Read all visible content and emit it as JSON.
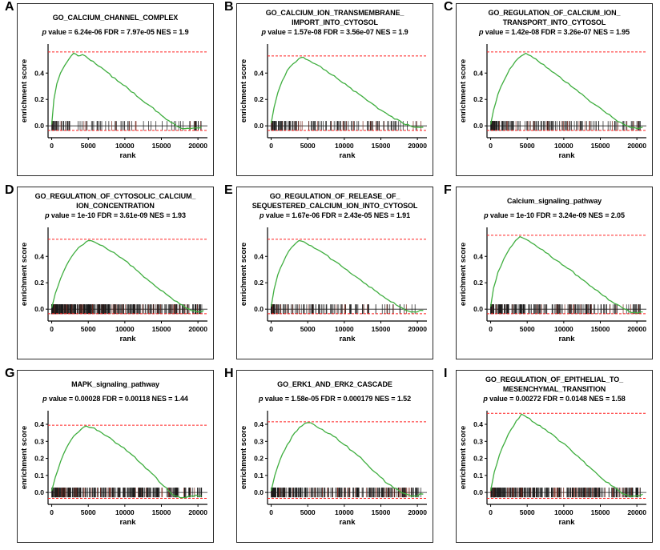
{
  "figure": {
    "stats_prefix": "p",
    "colors": {
      "curve": "#3fae3f",
      "dash": "#ff2222",
      "hit": "#1a1a1a",
      "hit_alt": "#7a2b20",
      "axis": "#000000",
      "border": "#2b2b2b"
    }
  },
  "chart_data": [
    {
      "panel": "A",
      "type": "line",
      "title": "GO_CALCIUM_CHANNEL_COMPLEX",
      "title_lines": [
        "GO_CALCIUM_CHANNEL_COMPLEX"
      ],
      "stats": " value = 6.24e-06 FDR = 7.97e-05 NES = 1.9",
      "xlabel": "rank",
      "ylabel": "enrichment score",
      "xticks": [
        0,
        5000,
        10000,
        15000,
        20000
      ],
      "xlim": [
        -500,
        21300
      ],
      "yticks": [
        0.0,
        0.2,
        0.4
      ],
      "ylim": [
        -0.09,
        0.62
      ],
      "dash_y": 0.56,
      "dash_low_y": -0.035,
      "curve": [
        [
          0,
          0.01
        ],
        [
          300,
          0.2
        ],
        [
          700,
          0.32
        ],
        [
          1200,
          0.4
        ],
        [
          1800,
          0.46
        ],
        [
          2400,
          0.51
        ],
        [
          3000,
          0.55
        ],
        [
          3600,
          0.53
        ],
        [
          4200,
          0.54
        ],
        [
          5000,
          0.51
        ],
        [
          6000,
          0.47
        ],
        [
          7500,
          0.41
        ],
        [
          9000,
          0.34
        ],
        [
          10500,
          0.28
        ],
        [
          12000,
          0.21
        ],
        [
          13500,
          0.15
        ],
        [
          15000,
          0.08
        ],
        [
          16000,
          0.04
        ],
        [
          17000,
          0.0
        ],
        [
          17800,
          -0.02
        ],
        [
          19000,
          -0.02
        ],
        [
          20500,
          -0.01
        ]
      ],
      "hits": {
        "count": 90,
        "skew": 1.9
      }
    },
    {
      "panel": "B",
      "type": "line",
      "title": "GO_CALCIUM_ION_TRANSMEMBRANE_IMPORT_INTO_CYTOSOL",
      "title_lines": [
        "GO_CALCIUM_ION_TRANSMEMBRANE_",
        "IMPORT_INTO_CYTOSOL"
      ],
      "stats": " value = 1.57e-08 FDR = 3.56e-07 NES = 1.9",
      "xlabel": "rank",
      "ylabel": "enrichment score",
      "xticks": [
        0,
        5000,
        10000,
        15000,
        20000
      ],
      "xlim": [
        -500,
        21300
      ],
      "yticks": [
        0.0,
        0.2,
        0.4
      ],
      "ylim": [
        -0.09,
        0.62
      ],
      "dash_y": 0.53,
      "dash_low_y": -0.035,
      "curve": [
        [
          0,
          0.02
        ],
        [
          400,
          0.14
        ],
        [
          900,
          0.25
        ],
        [
          1500,
          0.34
        ],
        [
          2200,
          0.42
        ],
        [
          3000,
          0.47
        ],
        [
          3800,
          0.51
        ],
        [
          4400,
          0.52
        ],
        [
          5000,
          0.5
        ],
        [
          6000,
          0.47
        ],
        [
          7500,
          0.42
        ],
        [
          9000,
          0.36
        ],
        [
          10500,
          0.3
        ],
        [
          12000,
          0.24
        ],
        [
          13500,
          0.18
        ],
        [
          15000,
          0.12
        ],
        [
          16500,
          0.07
        ],
        [
          18000,
          0.02
        ],
        [
          19000,
          0.0
        ],
        [
          20000,
          -0.01
        ],
        [
          20800,
          -0.01
        ]
      ],
      "hits": {
        "count": 140,
        "skew": 1.9
      }
    },
    {
      "panel": "C",
      "type": "line",
      "title": "GO_REGULATION_OF_CALCIUM_ION_TRANSPORT_INTO_CYTOSOL",
      "title_lines": [
        "GO_REGULATION_OF_CALCIUM_ION_",
        "TRANSPORT_INTO_CYTOSOL"
      ],
      "stats": " value = 1.42e-08 FDR = 3.26e-07 NES = 1.95",
      "xlabel": "rank",
      "ylabel": "enrichment score",
      "xticks": [
        0,
        5000,
        10000,
        15000,
        20000
      ],
      "xlim": [
        -500,
        21300
      ],
      "yticks": [
        0.0,
        0.2,
        0.4
      ],
      "ylim": [
        -0.09,
        0.62
      ],
      "dash_y": 0.56,
      "dash_low_y": -0.035,
      "curve": [
        [
          0,
          0.01
        ],
        [
          400,
          0.12
        ],
        [
          1000,
          0.24
        ],
        [
          1800,
          0.34
        ],
        [
          2600,
          0.43
        ],
        [
          3400,
          0.49
        ],
        [
          4200,
          0.53
        ],
        [
          4800,
          0.55
        ],
        [
          5500,
          0.53
        ],
        [
          6500,
          0.49
        ],
        [
          8000,
          0.43
        ],
        [
          9500,
          0.37
        ],
        [
          11000,
          0.3
        ],
        [
          12500,
          0.24
        ],
        [
          14000,
          0.17
        ],
        [
          15500,
          0.11
        ],
        [
          17000,
          0.05
        ],
        [
          18200,
          0.01
        ],
        [
          19000,
          -0.01
        ],
        [
          20000,
          -0.02
        ],
        [
          20800,
          -0.01
        ]
      ],
      "hits": {
        "count": 160,
        "skew": 1.8
      }
    },
    {
      "panel": "D",
      "type": "line",
      "title": "GO_REGULATION_OF_CYTOSOLIC_CALCIUM_ION_CONCENTRATION",
      "title_lines": [
        "GO_REGULATION_OF_CYTOSOLIC_CALCIUM_",
        "ION_CONCENTRATION"
      ],
      "stats": " value = 1e-10 FDR = 3.61e-09 NES = 1.93",
      "xlabel": "rank",
      "ylabel": "enrichment score",
      "xticks": [
        0,
        5000,
        10000,
        15000,
        20000
      ],
      "xlim": [
        -500,
        21300
      ],
      "yticks": [
        0.0,
        0.2,
        0.4
      ],
      "ylim": [
        -0.09,
        0.62
      ],
      "dash_y": 0.53,
      "dash_low_y": -0.035,
      "curve": [
        [
          0,
          0.01
        ],
        [
          500,
          0.12
        ],
        [
          1200,
          0.23
        ],
        [
          2000,
          0.33
        ],
        [
          3000,
          0.42
        ],
        [
          4000,
          0.48
        ],
        [
          5000,
          0.52
        ],
        [
          5800,
          0.51
        ],
        [
          7000,
          0.48
        ],
        [
          8500,
          0.43
        ],
        [
          10000,
          0.37
        ],
        [
          11500,
          0.3
        ],
        [
          13000,
          0.23
        ],
        [
          14500,
          0.16
        ],
        [
          16000,
          0.1
        ],
        [
          17500,
          0.04
        ],
        [
          18800,
          0.0
        ],
        [
          19800,
          -0.02
        ],
        [
          20800,
          -0.01
        ]
      ],
      "hits": {
        "count": 380,
        "skew": 1.7
      }
    },
    {
      "panel": "E",
      "type": "line",
      "title": "GO_REGULATION_OF_RELEASE_OF_SEQUESTERED_CALCIUM_ION_INTO_CYTOSOL",
      "title_lines": [
        "GO_REGULATION_OF_RELEASE_OF_",
        "SEQUESTERED_CALCIUM_ION_INTO_CYTOSOL"
      ],
      "stats": " value = 1.67e-06 FDR = 2.43e-05 NES = 1.91",
      "xlabel": "rank",
      "ylabel": "enrichment score",
      "xticks": [
        0,
        5000,
        10000,
        15000,
        20000
      ],
      "xlim": [
        -500,
        21300
      ],
      "yticks": [
        0.0,
        0.2,
        0.4
      ],
      "ylim": [
        -0.09,
        0.62
      ],
      "dash_y": 0.53,
      "dash_low_y": -0.035,
      "curve": [
        [
          0,
          0.02
        ],
        [
          400,
          0.15
        ],
        [
          900,
          0.26
        ],
        [
          1600,
          0.35
        ],
        [
          2400,
          0.44
        ],
        [
          3200,
          0.49
        ],
        [
          3800,
          0.52
        ],
        [
          4500,
          0.51
        ],
        [
          5500,
          0.48
        ],
        [
          7000,
          0.43
        ],
        [
          8500,
          0.37
        ],
        [
          10000,
          0.31
        ],
        [
          11500,
          0.25
        ],
        [
          13000,
          0.19
        ],
        [
          14500,
          0.13
        ],
        [
          16000,
          0.07
        ],
        [
          17500,
          0.02
        ],
        [
          18500,
          -0.01
        ],
        [
          19500,
          -0.02
        ],
        [
          20800,
          -0.01
        ]
      ],
      "hits": {
        "count": 130,
        "skew": 1.9
      }
    },
    {
      "panel": "F",
      "type": "line",
      "title": "Calcium_signaling_pathway",
      "title_lines": [
        "Calcium_signaling_pathway"
      ],
      "stats": " value = 1e-10 FDR = 3.24e-09 NES = 2.05",
      "xlabel": "rank",
      "ylabel": "enrichment score",
      "xticks": [
        0,
        5000,
        10000,
        15000,
        20000
      ],
      "xlim": [
        -500,
        21300
      ],
      "yticks": [
        0.0,
        0.2,
        0.4
      ],
      "ylim": [
        -0.09,
        0.62
      ],
      "dash_y": 0.56,
      "dash_low_y": -0.035,
      "curve": [
        [
          0,
          0.02
        ],
        [
          400,
          0.16
        ],
        [
          1000,
          0.28
        ],
        [
          1800,
          0.38
        ],
        [
          2600,
          0.46
        ],
        [
          3400,
          0.52
        ],
        [
          4000,
          0.55
        ],
        [
          4800,
          0.53
        ],
        [
          6000,
          0.49
        ],
        [
          7500,
          0.43
        ],
        [
          9000,
          0.37
        ],
        [
          10500,
          0.31
        ],
        [
          12000,
          0.25
        ],
        [
          13500,
          0.18
        ],
        [
          15000,
          0.12
        ],
        [
          16500,
          0.06
        ],
        [
          18000,
          0.01
        ],
        [
          19000,
          -0.02
        ],
        [
          20000,
          -0.03
        ],
        [
          20800,
          -0.02
        ]
      ],
      "hits": {
        "count": 200,
        "skew": 1.8
      }
    },
    {
      "panel": "G",
      "type": "line",
      "title": "MAPK_signaling_pathway",
      "title_lines": [
        "MAPK_signaling_pathway"
      ],
      "stats": " value = 0.00028 FDR = 0.00118 NES = 1.44",
      "xlabel": "rank",
      "ylabel": "enrichment score",
      "xticks": [
        0,
        5000,
        10000,
        15000,
        20000
      ],
      "xlim": [
        -500,
        21300
      ],
      "yticks": [
        0.0,
        0.1,
        0.2,
        0.3,
        0.4
      ],
      "ylim": [
        -0.07,
        0.48
      ],
      "dash_y": 0.395,
      "dash_low_y": -0.035,
      "curve": [
        [
          0,
          0.01
        ],
        [
          500,
          0.09
        ],
        [
          1200,
          0.18
        ],
        [
          2000,
          0.26
        ],
        [
          3000,
          0.33
        ],
        [
          4000,
          0.37
        ],
        [
          4700,
          0.39
        ],
        [
          5500,
          0.38
        ],
        [
          6500,
          0.36
        ],
        [
          8000,
          0.32
        ],
        [
          9500,
          0.27
        ],
        [
          11000,
          0.22
        ],
        [
          12500,
          0.16
        ],
        [
          14000,
          0.1
        ],
        [
          15000,
          0.05
        ],
        [
          16000,
          0.01
        ],
        [
          16800,
          -0.02
        ],
        [
          18000,
          -0.03
        ],
        [
          19000,
          -0.02
        ],
        [
          20500,
          -0.02
        ]
      ],
      "hits": {
        "count": 300,
        "skew": 1.4
      }
    },
    {
      "panel": "H",
      "type": "line",
      "title": "GO_ERK1_AND_ERK2_CASCADE",
      "title_lines": [
        "GO_ERK1_AND_ERK2_CASCADE"
      ],
      "stats": " value = 1.58e-05 FDR = 0.000179 NES = 1.52",
      "xlabel": "rank",
      "ylabel": "enrichment score",
      "xticks": [
        0,
        5000,
        10000,
        15000,
        20000
      ],
      "xlim": [
        -500,
        21300
      ],
      "yticks": [
        0.0,
        0.1,
        0.2,
        0.3,
        0.4
      ],
      "ylim": [
        -0.07,
        0.48
      ],
      "dash_y": 0.415,
      "dash_low_y": -0.035,
      "curve": [
        [
          0,
          0.01
        ],
        [
          500,
          0.1
        ],
        [
          1200,
          0.19
        ],
        [
          2200,
          0.28
        ],
        [
          3200,
          0.35
        ],
        [
          4200,
          0.39
        ],
        [
          5000,
          0.41
        ],
        [
          5800,
          0.4
        ],
        [
          7000,
          0.37
        ],
        [
          8500,
          0.33
        ],
        [
          10000,
          0.28
        ],
        [
          11500,
          0.23
        ],
        [
          13000,
          0.17
        ],
        [
          14500,
          0.11
        ],
        [
          16000,
          0.05
        ],
        [
          17500,
          0.01
        ],
        [
          18500,
          -0.01
        ],
        [
          19500,
          -0.02
        ],
        [
          20800,
          -0.01
        ]
      ],
      "hits": {
        "count": 260,
        "skew": 1.4
      }
    },
    {
      "panel": "I",
      "type": "line",
      "title": "GO_REGULATION_OF_EPITHELIAL_TO_MESENCHYMAL_TRANSITION",
      "title_lines": [
        "GO_REGULATION_OF_EPITHELIAL_TO_",
        "MESENCHYMAL_TRANSITION"
      ],
      "stats": " value = 0.00272 FDR = 0.0148 NES = 1.58",
      "xlabel": "rank",
      "ylabel": "enrichment score",
      "xticks": [
        0,
        5000,
        10000,
        15000,
        20000
      ],
      "xlim": [
        -500,
        21300
      ],
      "yticks": [
        0.0,
        0.1,
        0.2,
        0.3,
        0.4
      ],
      "ylim": [
        -0.07,
        0.48
      ],
      "dash_y": 0.465,
      "dash_low_y": -0.035,
      "curve": [
        [
          0,
          0.01
        ],
        [
          500,
          0.12
        ],
        [
          1200,
          0.22
        ],
        [
          2000,
          0.3
        ],
        [
          2800,
          0.37
        ],
        [
          3500,
          0.42
        ],
        [
          4200,
          0.46
        ],
        [
          5000,
          0.44
        ],
        [
          6000,
          0.41
        ],
        [
          7500,
          0.37
        ],
        [
          9000,
          0.32
        ],
        [
          10500,
          0.27
        ],
        [
          12000,
          0.21
        ],
        [
          13500,
          0.15
        ],
        [
          15000,
          0.09
        ],
        [
          16500,
          0.04
        ],
        [
          17800,
          0.0
        ],
        [
          18800,
          -0.02
        ],
        [
          20000,
          -0.02
        ],
        [
          20800,
          -0.01
        ]
      ],
      "hits": {
        "count": 310,
        "skew": 1.4
      }
    }
  ]
}
